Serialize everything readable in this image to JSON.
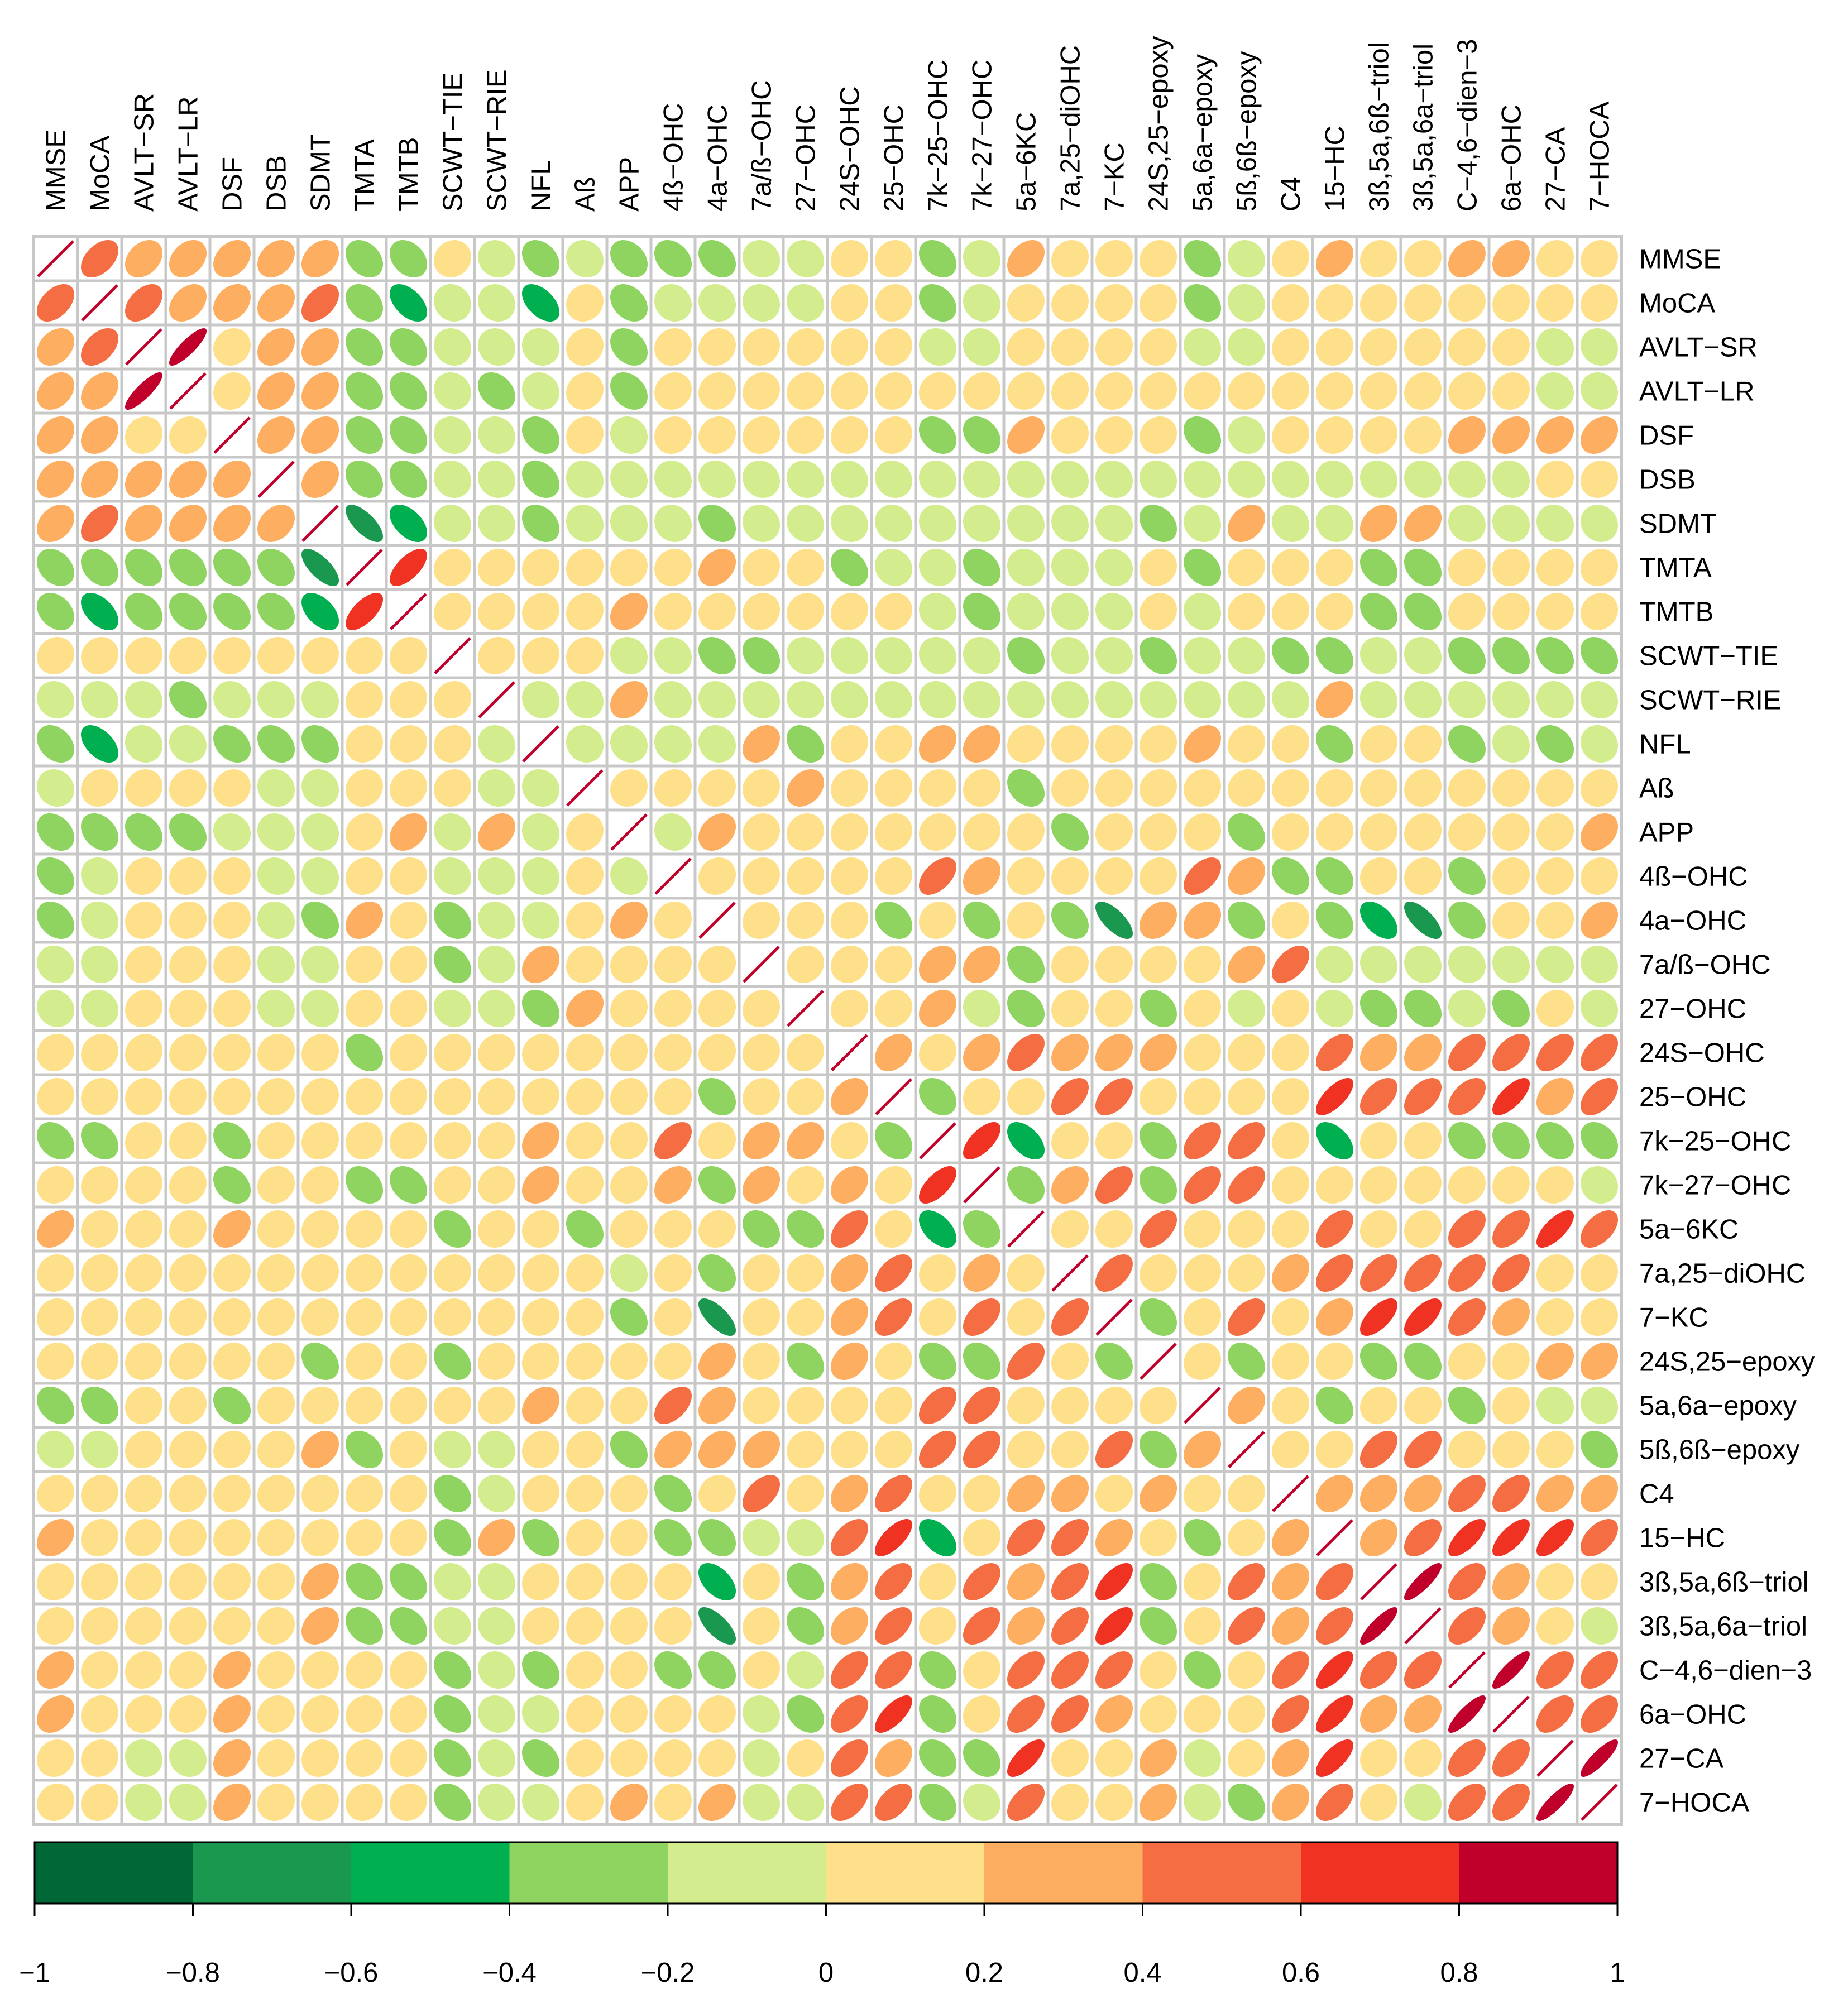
{
  "chart_data": {
    "type": "heatmap",
    "style": "correlation-ellipse",
    "labels": [
      "MMSE",
      "MoCA",
      "AVLT−SR",
      "AVLT−LR",
      "DSF",
      "DSB",
      "SDMT",
      "TMTA",
      "TMTB",
      "SCWT−TIE",
      "SCWT−RIE",
      "NFL",
      "Aß",
      "APP",
      "4ß−OHC",
      "4a−OHC",
      "7a/ß−OHC",
      "27−OHC",
      "24S−OHC",
      "25−OHC",
      "7k−25−OHC",
      "7k−27−OHC",
      "5a−6KC",
      "7a,25−diOHC",
      "7−KC",
      "24S,25−epoxy",
      "5a,6a−epoxy",
      "5ß,6ß−epoxy",
      "C4",
      "15−HC",
      "3ß,5a,6ß−triol",
      "3ß,5a,6a−triol",
      "C−4,6−dien−3",
      "6a−OHC",
      "27−CA",
      "7−HOCA"
    ],
    "matrix": [
      [
        1,
        0.45,
        0.3,
        0.3,
        0.3,
        0.3,
        0.3,
        -0.3,
        -0.3,
        0.1,
        -0.1,
        -0.3,
        -0.1,
        -0.3,
        -0.3,
        -0.3,
        -0.1,
        -0.1,
        0.1,
        0.1,
        -0.3,
        -0.1,
        0.35,
        0.1,
        0.1,
        0.1,
        -0.3,
        -0.1,
        0.1,
        0.3,
        0.1,
        0.1,
        0.3,
        0.3,
        0.1,
        0.1
      ],
      [
        0.45,
        1,
        0.45,
        0.35,
        0.3,
        0.3,
        0.45,
        -0.3,
        -0.5,
        -0.1,
        -0.1,
        -0.5,
        0.1,
        -0.3,
        -0.1,
        -0.1,
        -0.1,
        -0.1,
        0.1,
        0.1,
        -0.3,
        -0.1,
        0.1,
        0.1,
        0.1,
        0.1,
        -0.3,
        -0.1,
        0.1,
        0.1,
        0.1,
        0.1,
        0.1,
        0.1,
        0.1,
        0.1
      ],
      [
        0.3,
        0.45,
        1,
        0.85,
        0.1,
        0.3,
        0.3,
        -0.3,
        -0.3,
        -0.1,
        -0.1,
        -0.1,
        0.1,
        -0.3,
        0.1,
        0.1,
        0.1,
        0.1,
        0.1,
        0.1,
        -0.1,
        -0.1,
        0.1,
        0.1,
        0.1,
        0.1,
        -0.1,
        -0.1,
        0.1,
        0.1,
        0.1,
        0.1,
        0.1,
        0.1,
        -0.1,
        -0.1
      ],
      [
        0.3,
        0.35,
        0.85,
        1,
        0.1,
        0.3,
        0.3,
        -0.3,
        -0.3,
        -0.1,
        -0.3,
        -0.1,
        0.1,
        -0.3,
        0.1,
        0.1,
        0.1,
        0.1,
        0.1,
        0.1,
        0.1,
        0.1,
        0.1,
        0.1,
        0.1,
        0.1,
        0.1,
        0.1,
        0.1,
        0.1,
        0.1,
        0.1,
        0.1,
        0.1,
        -0.1,
        -0.1
      ],
      [
        0.3,
        0.3,
        0.1,
        0.1,
        1,
        0.3,
        0.3,
        -0.3,
        -0.3,
        -0.1,
        -0.1,
        -0.3,
        0.1,
        -0.1,
        0.1,
        0.1,
        0.1,
        0.1,
        0.1,
        0.1,
        -0.3,
        -0.3,
        0.35,
        0.1,
        0.1,
        0.1,
        -0.3,
        -0.1,
        0.1,
        0.1,
        0.1,
        0.1,
        0.3,
        0.3,
        0.3,
        0.3
      ],
      [
        0.3,
        0.3,
        0.3,
        0.3,
        0.3,
        1,
        0.3,
        -0.3,
        -0.3,
        -0.1,
        -0.1,
        -0.3,
        -0.1,
        -0.1,
        -0.1,
        -0.1,
        -0.1,
        -0.1,
        -0.1,
        -0.1,
        -0.1,
        -0.1,
        -0.1,
        -0.1,
        -0.1,
        -0.1,
        -0.1,
        -0.1,
        -0.1,
        -0.1,
        -0.1,
        -0.1,
        -0.1,
        -0.1,
        0.1,
        0.1
      ],
      [
        0.3,
        0.45,
        0.3,
        0.3,
        0.3,
        0.3,
        1,
        -0.7,
        -0.5,
        -0.1,
        -0.1,
        -0.3,
        -0.1,
        -0.1,
        -0.1,
        -0.3,
        -0.1,
        -0.1,
        -0.1,
        -0.1,
        -0.1,
        -0.1,
        -0.1,
        -0.1,
        -0.1,
        -0.3,
        -0.1,
        0.3,
        -0.1,
        -0.1,
        0.3,
        0.3,
        -0.1,
        -0.1,
        -0.1,
        -0.1
      ],
      [
        -0.3,
        -0.3,
        -0.3,
        -0.3,
        -0.3,
        -0.3,
        -0.7,
        1,
        0.65,
        0.1,
        0.1,
        0.1,
        0.1,
        0.1,
        0.1,
        0.3,
        0.1,
        0.1,
        -0.3,
        -0.1,
        -0.1,
        -0.3,
        -0.1,
        -0.1,
        -0.1,
        0.1,
        -0.3,
        0.1,
        0.1,
        0.1,
        -0.3,
        -0.3,
        0.1,
        0.1,
        0.1,
        0.1
      ],
      [
        -0.3,
        -0.5,
        -0.3,
        -0.3,
        -0.3,
        -0.3,
        -0.5,
        0.65,
        1,
        0.1,
        0.1,
        0.1,
        0.1,
        0.3,
        0.1,
        0.1,
        0.1,
        0.1,
        0.1,
        0.1,
        -0.1,
        -0.3,
        -0.1,
        -0.1,
        -0.1,
        0.1,
        -0.1,
        0.1,
        0.1,
        0.1,
        -0.3,
        -0.3,
        0.1,
        0.1,
        0.1,
        0.1
      ],
      [
        0.1,
        0.1,
        0.1,
        0.1,
        0.1,
        0.1,
        0.1,
        0.1,
        0.1,
        1,
        0.1,
        0.1,
        0.1,
        -0.1,
        -0.1,
        -0.3,
        -0.3,
        -0.1,
        -0.1,
        -0.1,
        -0.1,
        -0.1,
        -0.3,
        -0.1,
        -0.1,
        -0.3,
        -0.1,
        -0.1,
        -0.3,
        -0.3,
        -0.1,
        -0.1,
        -0.3,
        -0.3,
        -0.3,
        -0.3
      ],
      [
        -0.1,
        -0.1,
        -0.1,
        -0.3,
        -0.1,
        -0.1,
        -0.1,
        0.1,
        0.1,
        0.1,
        1,
        -0.1,
        -0.1,
        0.3,
        -0.1,
        -0.1,
        -0.1,
        -0.1,
        -0.1,
        -0.1,
        -0.1,
        -0.1,
        -0.1,
        -0.1,
        -0.1,
        -0.1,
        -0.1,
        -0.1,
        -0.1,
        0.3,
        -0.1,
        -0.1,
        -0.1,
        -0.1,
        -0.1,
        -0.1
      ],
      [
        -0.3,
        -0.5,
        -0.1,
        -0.1,
        -0.3,
        -0.3,
        -0.3,
        0.1,
        0.1,
        0.1,
        -0.1,
        1,
        -0.1,
        -0.1,
        -0.1,
        -0.1,
        0.3,
        -0.3,
        0.1,
        0.1,
        0.3,
        0.3,
        0.1,
        0.1,
        0.1,
        0.1,
        0.3,
        0.1,
        0.1,
        -0.3,
        0.1,
        0.1,
        -0.3,
        -0.1,
        -0.3,
        -0.1
      ],
      [
        -0.1,
        0.1,
        0.1,
        0.1,
        0.1,
        -0.1,
        -0.1,
        0.1,
        0.1,
        0.1,
        -0.1,
        -0.1,
        1,
        0.1,
        0.1,
        0.1,
        0.1,
        0.3,
        0.1,
        0.1,
        0.1,
        0.1,
        -0.3,
        0.1,
        0.1,
        0.1,
        0.1,
        0.1,
        0.1,
        0.1,
        0.1,
        0.1,
        0.1,
        0.1,
        0.1,
        0.1
      ],
      [
        -0.3,
        -0.3,
        -0.3,
        -0.3,
        -0.1,
        -0.1,
        -0.1,
        0.1,
        0.3,
        -0.1,
        0.3,
        -0.1,
        0.1,
        1,
        -0.1,
        0.3,
        0.1,
        0.1,
        0.1,
        0.1,
        0.1,
        0.1,
        0.1,
        -0.3,
        0.1,
        0.1,
        0.1,
        -0.3,
        0.1,
        0.1,
        0.1,
        0.1,
        0.1,
        0.1,
        0.1,
        0.3
      ],
      [
        -0.3,
        -0.1,
        0.1,
        0.1,
        0.1,
        -0.1,
        -0.1,
        0.1,
        0.1,
        -0.1,
        -0.1,
        -0.1,
        0.1,
        -0.1,
        1,
        0.1,
        0.1,
        0.1,
        0.1,
        0.1,
        0.5,
        0.3,
        0.1,
        0.1,
        0.1,
        0.1,
        0.5,
        0.3,
        -0.3,
        -0.3,
        0.1,
        0.1,
        -0.3,
        0.1,
        0.1,
        0.1
      ],
      [
        -0.3,
        -0.1,
        0.1,
        0.1,
        0.1,
        -0.1,
        -0.3,
        0.3,
        0.1,
        -0.3,
        -0.1,
        -0.1,
        0.1,
        0.3,
        0.1,
        1,
        0.1,
        0.1,
        0.1,
        -0.3,
        0.1,
        -0.3,
        0.1,
        -0.3,
        -0.7,
        0.3,
        0.3,
        -0.3,
        0.1,
        -0.3,
        -0.5,
        -0.7,
        -0.3,
        0.1,
        0.1,
        0.3
      ],
      [
        -0.1,
        -0.1,
        0.1,
        0.1,
        0.1,
        -0.1,
        -0.1,
        0.1,
        0.1,
        -0.3,
        -0.1,
        0.3,
        0.1,
        0.1,
        0.1,
        0.1,
        1,
        0.1,
        0.1,
        0.1,
        0.3,
        0.3,
        -0.3,
        0.1,
        0.1,
        0.1,
        0.1,
        0.3,
        0.5,
        -0.1,
        -0.1,
        -0.1,
        -0.1,
        -0.1,
        -0.1,
        -0.1
      ],
      [
        -0.1,
        -0.1,
        0.1,
        0.1,
        0.1,
        -0.1,
        -0.1,
        0.1,
        0.1,
        -0.1,
        -0.1,
        -0.3,
        0.3,
        0.1,
        0.1,
        0.1,
        0.1,
        1,
        0.1,
        0.1,
        0.3,
        -0.1,
        -0.3,
        0.1,
        0.1,
        -0.3,
        0.1,
        -0.1,
        0.1,
        -0.1,
        -0.3,
        -0.3,
        -0.1,
        -0.3,
        0.1,
        -0.1
      ],
      [
        0.1,
        0.1,
        0.1,
        0.1,
        0.1,
        0.1,
        0.1,
        -0.3,
        0.1,
        0.1,
        0.1,
        0.1,
        0.1,
        0.1,
        0.1,
        0.1,
        0.1,
        0.1,
        1,
        0.3,
        0.1,
        0.3,
        0.5,
        0.3,
        0.3,
        0.3,
        0.1,
        0.1,
        0.1,
        0.5,
        0.3,
        0.3,
        0.5,
        0.5,
        0.5,
        0.5
      ],
      [
        0.1,
        0.1,
        0.1,
        0.1,
        0.1,
        0.1,
        0.1,
        0.1,
        0.1,
        0.1,
        0.1,
        0.1,
        0.1,
        0.1,
        0.1,
        -0.3,
        0.1,
        0.1,
        0.3,
        1,
        -0.3,
        0.1,
        0.1,
        0.5,
        0.5,
        0.1,
        0.1,
        0.1,
        0.1,
        0.7,
        0.5,
        0.5,
        0.5,
        0.7,
        0.3,
        0.5
      ],
      [
        -0.3,
        -0.3,
        0.1,
        0.1,
        -0.3,
        0.1,
        0.1,
        0.1,
        0.1,
        0.1,
        0.1,
        0.3,
        0.1,
        0.1,
        0.5,
        0.1,
        0.3,
        0.3,
        0.1,
        -0.3,
        1,
        0.65,
        -0.5,
        0.1,
        0.1,
        -0.3,
        0.5,
        0.5,
        0.1,
        -0.5,
        0.1,
        0.1,
        -0.3,
        -0.3,
        -0.3,
        -0.3
      ],
      [
        0.1,
        0.1,
        0.1,
        0.1,
        -0.3,
        0.1,
        0.1,
        -0.3,
        -0.3,
        0.1,
        0.1,
        0.3,
        0.1,
        0.1,
        0.3,
        -0.3,
        0.3,
        0.1,
        0.3,
        0.1,
        0.65,
        1,
        -0.3,
        0.3,
        0.5,
        -0.3,
        0.5,
        0.5,
        0.1,
        0.1,
        0.1,
        0.1,
        0.1,
        0.1,
        0.1,
        -0.1
      ],
      [
        0.35,
        0.1,
        0.1,
        0.1,
        0.35,
        0.1,
        0.1,
        0.1,
        0.1,
        -0.3,
        0.1,
        0.1,
        -0.3,
        0.1,
        0.1,
        0.1,
        -0.3,
        -0.3,
        0.5,
        0.1,
        -0.5,
        -0.3,
        1,
        0.1,
        0.1,
        0.5,
        0.1,
        0.1,
        0.1,
        0.5,
        0.1,
        0.1,
        0.5,
        0.5,
        0.7,
        0.5
      ],
      [
        0.1,
        0.1,
        0.1,
        0.1,
        0.1,
        0.1,
        0.1,
        0.1,
        0.1,
        0.1,
        0.1,
        0.1,
        0.1,
        -0.1,
        0.1,
        -0.3,
        0.1,
        0.1,
        0.3,
        0.5,
        0.1,
        0.3,
        0.1,
        1,
        0.5,
        0.1,
        0.1,
        0.1,
        0.3,
        0.5,
        0.5,
        0.5,
        0.5,
        0.5,
        0.1,
        0.1
      ],
      [
        0.1,
        0.1,
        0.1,
        0.1,
        0.1,
        0.1,
        0.1,
        0.1,
        0.1,
        0.1,
        0.1,
        0.1,
        0.1,
        -0.3,
        0.1,
        -0.7,
        0.1,
        0.1,
        0.3,
        0.5,
        0.1,
        0.5,
        0.1,
        0.5,
        1,
        -0.3,
        0.1,
        0.5,
        0.1,
        0.3,
        0.65,
        0.65,
        0.5,
        0.3,
        0.1,
        0.1
      ],
      [
        0.1,
        0.1,
        0.1,
        0.1,
        0.1,
        0.1,
        -0.3,
        0.1,
        0.1,
        -0.3,
        0.1,
        0.1,
        0.1,
        0.1,
        0.1,
        0.3,
        0.1,
        -0.3,
        0.3,
        0.1,
        -0.3,
        -0.3,
        0.5,
        0.1,
        -0.3,
        1,
        0.1,
        -0.3,
        0.1,
        0.1,
        -0.3,
        -0.3,
        0.1,
        0.1,
        0.3,
        0.3
      ],
      [
        -0.3,
        -0.3,
        0.1,
        0.1,
        -0.3,
        0.1,
        0.1,
        0.1,
        0.1,
        0.1,
        0.1,
        0.3,
        0.1,
        0.1,
        0.5,
        0.3,
        0.1,
        0.1,
        0.1,
        0.1,
        0.5,
        0.5,
        0.1,
        0.1,
        0.1,
        0.1,
        1,
        0.3,
        0.1,
        -0.3,
        0.1,
        0.1,
        -0.3,
        0.1,
        -0.1,
        -0.1
      ],
      [
        -0.1,
        -0.1,
        0.1,
        0.1,
        0.1,
        0.1,
        0.3,
        -0.3,
        0.1,
        -0.1,
        -0.1,
        0.1,
        0.1,
        -0.3,
        0.3,
        0.3,
        0.3,
        0.1,
        0.1,
        0.1,
        0.5,
        0.5,
        0.1,
        0.1,
        0.5,
        -0.3,
        0.3,
        1,
        0.1,
        0.1,
        0.5,
        0.5,
        0.1,
        0.1,
        0.1,
        -0.3
      ],
      [
        0.1,
        0.1,
        0.1,
        0.1,
        0.1,
        0.1,
        0.1,
        0.1,
        0.1,
        -0.3,
        -0.1,
        0.1,
        0.1,
        0.1,
        -0.3,
        0.1,
        0.5,
        0.1,
        0.3,
        0.5,
        0.1,
        0.1,
        0.3,
        0.3,
        0.1,
        0.3,
        0.1,
        0.1,
        1,
        0.3,
        0.3,
        0.3,
        0.5,
        0.5,
        0.3,
        0.3
      ],
      [
        0.3,
        0.1,
        0.1,
        0.1,
        0.1,
        0.1,
        0.1,
        0.1,
        0.1,
        -0.3,
        0.3,
        -0.3,
        0.1,
        0.1,
        -0.3,
        -0.3,
        -0.1,
        -0.1,
        0.5,
        0.7,
        -0.5,
        0.1,
        0.5,
        0.5,
        0.3,
        0.1,
        -0.3,
        0.1,
        0.3,
        1,
        0.3,
        0.5,
        0.7,
        0.7,
        0.7,
        0.5
      ],
      [
        0.1,
        0.1,
        0.1,
        0.1,
        0.1,
        0.1,
        0.3,
        -0.3,
        -0.3,
        -0.1,
        -0.1,
        0.1,
        0.1,
        0.1,
        0.1,
        -0.5,
        0.1,
        -0.3,
        0.3,
        0.5,
        0.1,
        0.5,
        0.3,
        0.5,
        0.65,
        -0.3,
        0.1,
        0.5,
        0.3,
        0.5,
        1,
        0.85,
        0.5,
        0.3,
        0.1,
        0.1
      ],
      [
        0.1,
        0.1,
        0.1,
        0.1,
        0.1,
        0.1,
        0.3,
        -0.3,
        -0.3,
        -0.1,
        -0.1,
        0.1,
        0.1,
        0.1,
        0.1,
        -0.7,
        0.1,
        -0.3,
        0.3,
        0.5,
        0.1,
        0.5,
        0.3,
        0.5,
        0.65,
        -0.3,
        0.1,
        0.5,
        0.3,
        0.5,
        0.85,
        1,
        0.5,
        0.3,
        0.1,
        -0.1
      ],
      [
        0.3,
        0.1,
        0.1,
        0.1,
        0.3,
        0.1,
        0.1,
        0.1,
        0.1,
        -0.3,
        -0.1,
        -0.3,
        0.1,
        0.1,
        -0.3,
        -0.3,
        0.1,
        -0.1,
        0.5,
        0.5,
        -0.3,
        0.1,
        0.5,
        0.5,
        0.5,
        0.1,
        -0.3,
        0.1,
        0.5,
        0.7,
        0.5,
        0.5,
        1,
        0.85,
        0.5,
        0.5
      ],
      [
        0.3,
        0.1,
        0.1,
        0.1,
        0.3,
        0.1,
        0.1,
        0.1,
        0.1,
        -0.3,
        -0.1,
        -0.1,
        0.1,
        0.1,
        0.1,
        0.1,
        -0.1,
        -0.3,
        0.5,
        0.7,
        -0.3,
        0.1,
        0.5,
        0.5,
        0.3,
        0.1,
        0.1,
        0.1,
        0.5,
        0.7,
        0.3,
        0.3,
        0.85,
        1,
        0.5,
        0.5
      ],
      [
        0.1,
        0.1,
        -0.1,
        -0.1,
        0.3,
        0.1,
        0.1,
        0.1,
        0.1,
        -0.3,
        -0.1,
        -0.3,
        0.1,
        0.1,
        0.1,
        0.1,
        -0.1,
        0.1,
        0.5,
        0.3,
        -0.3,
        -0.3,
        0.7,
        0.1,
        0.1,
        0.3,
        -0.1,
        0.1,
        0.3,
        0.7,
        0.1,
        0.1,
        0.5,
        0.5,
        1,
        0.85
      ],
      [
        0.1,
        0.1,
        -0.1,
        -0.1,
        0.3,
        0.1,
        0.1,
        0.1,
        0.1,
        -0.3,
        -0.1,
        -0.1,
        0.1,
        0.3,
        0.1,
        0.3,
        -0.1,
        -0.1,
        0.5,
        0.5,
        -0.3,
        -0.1,
        0.5,
        0.1,
        0.1,
        0.3,
        -0.1,
        -0.3,
        0.3,
        0.5,
        0.1,
        -0.1,
        0.5,
        0.5,
        0.85,
        1
      ]
    ],
    "color_scale": {
      "breaks": [
        -1,
        -0.8,
        -0.6,
        -0.4,
        -0.2,
        0,
        0.2,
        0.4,
        0.6,
        0.8,
        1
      ],
      "colors": [
        "#006837",
        "#1a9850",
        "#00b050",
        "#8fd460",
        "#d3ec8e",
        "#fee08b",
        "#fdae61",
        "#f46d43",
        "#f03223",
        "#c0002a"
      ],
      "tick_labels": [
        "−1",
        "−0.8",
        "−0.6",
        "−0.4",
        "−0.2",
        "0",
        "0.2",
        "0.4",
        "0.6",
        "0.8",
        "1"
      ]
    },
    "grid_color": "#c8c8c8",
    "diagonal_line_color": "#c0002a"
  }
}
